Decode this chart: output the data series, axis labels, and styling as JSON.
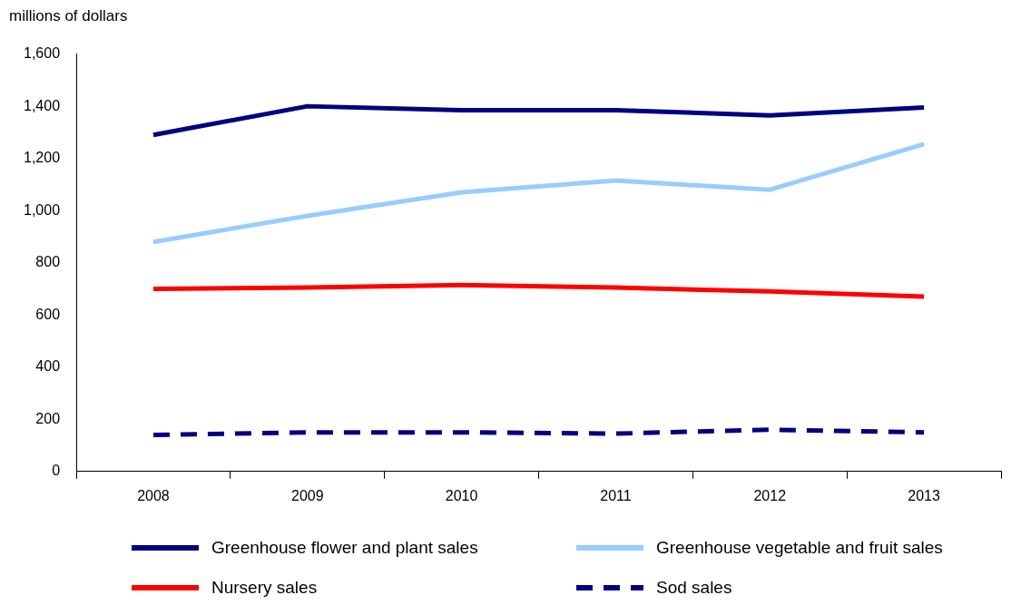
{
  "chart_data": {
    "type": "line",
    "ylabel": "millions of dollars",
    "categories": [
      "2008",
      "2009",
      "2010",
      "2011",
      "2012",
      "2013"
    ],
    "series": [
      {
        "name": "Greenhouse flower and plant sales",
        "color": "#000080",
        "values": [
          1290,
          1400,
          1385,
          1385,
          1365,
          1395
        ]
      },
      {
        "name": "Greenhouse vegetable and fruit sales",
        "color": "#99ccff",
        "values": [
          880,
          980,
          1070,
          1115,
          1080,
          1255
        ]
      },
      {
        "name": "Nursery sales",
        "color": "#ff0000",
        "values": [
          700,
          705,
          715,
          705,
          690,
          670
        ]
      },
      {
        "name": "Sod sales",
        "color": "#000080",
        "values": [
          140,
          150,
          150,
          145,
          160,
          150
        ],
        "line_style": "dashed"
      }
    ],
    "ylim": [
      0,
      1600
    ],
    "yticks": [
      0,
      200,
      400,
      600,
      800,
      {
        "value": 1000,
        "label": "1,000"
      },
      {
        "value": 1200,
        "label": "1,200"
      },
      {
        "value": 1400,
        "label": "1,400"
      },
      {
        "value": 1600,
        "label": "1,600"
      }
    ],
    "grid": false,
    "legend": "bottom",
    "marker": "none",
    "line_style": "solid"
  }
}
